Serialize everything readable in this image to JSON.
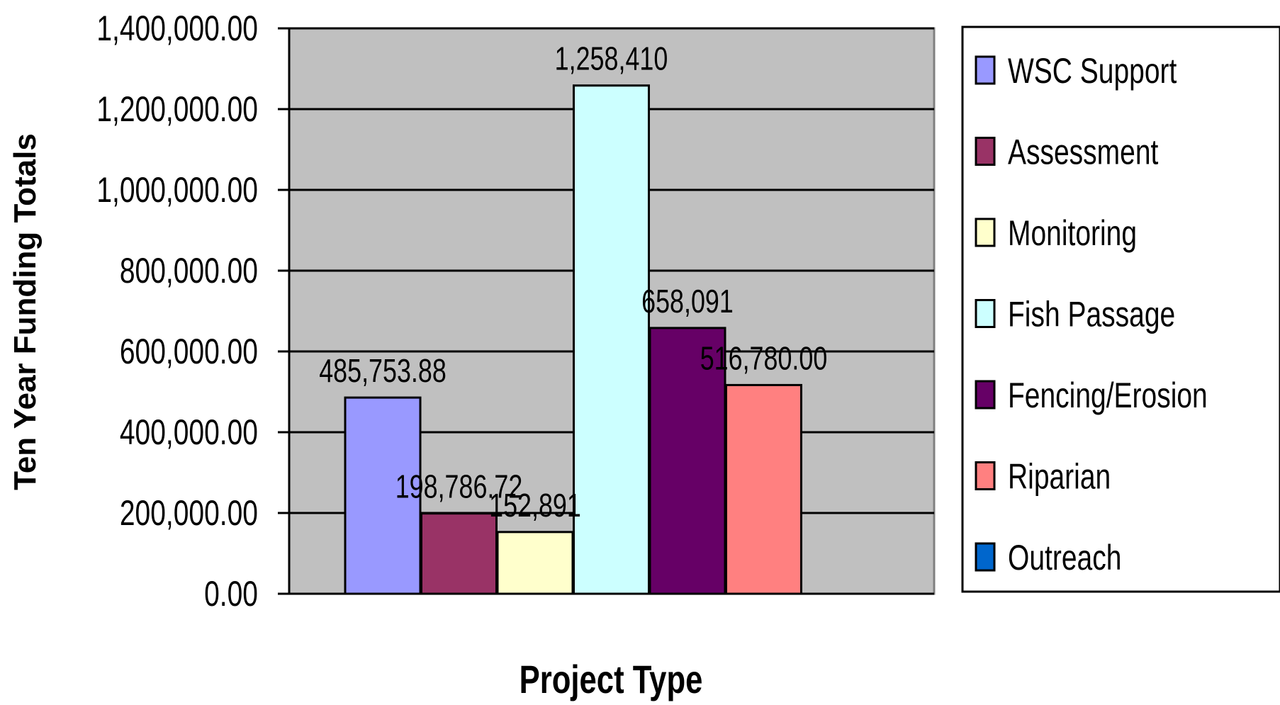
{
  "chart_data": {
    "type": "bar",
    "title": "",
    "xlabel": "Project Type",
    "ylabel": "Ten Year Funding Totals",
    "ylim": [
      0,
      1400000
    ],
    "yticks": [
      0,
      200000,
      400000,
      600000,
      800000,
      1000000,
      1200000,
      1400000
    ],
    "ytick_labels": [
      "0.00",
      "200,000.00",
      "400,000.00",
      "600,000.00",
      "800,000.00",
      "1,000,000.00",
      "1,200,000.00",
      "1,400,000.00"
    ],
    "grid": true,
    "plot_background": "#c0c0c0",
    "legend_position": "right",
    "series": [
      {
        "name": "WSC Support",
        "value": 485753.88,
        "label": "485,753.88",
        "color": "#9999ff"
      },
      {
        "name": "Assessment",
        "value": 198786.72,
        "label": "198,786.72",
        "color": "#993366"
      },
      {
        "name": "Monitoring",
        "value": 152891,
        "label": "152,891",
        "color": "#ffffcc"
      },
      {
        "name": "Fish Passage",
        "value": 1258410,
        "label": "1,258,410",
        "color": "#ccffff"
      },
      {
        "name": "Fencing/Erosion",
        "value": 658091,
        "label": "658,091",
        "color": "#660066"
      },
      {
        "name": "Riparian",
        "value": 516780,
        "label": "516,780.00",
        "color": "#ff8080"
      },
      {
        "name": "Outreach",
        "value": null,
        "label": "",
        "color": "#0066cc"
      }
    ]
  }
}
